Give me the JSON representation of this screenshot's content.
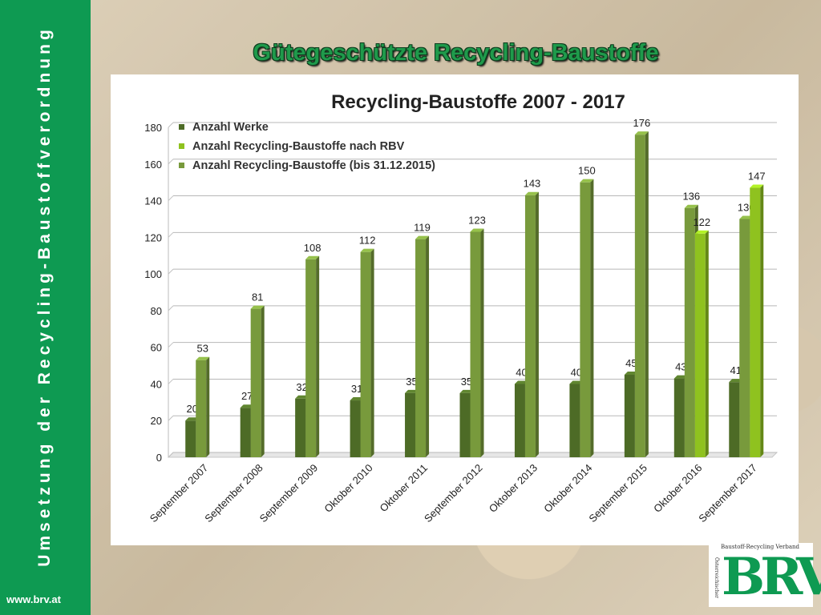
{
  "sidebar": {
    "vertical_text": "Umsetzung der Recycling-Baustoffverordnung",
    "url": "www.brv.at"
  },
  "slide": {
    "title": "Gütegeschützte Recycling-Baustoffe"
  },
  "logo": {
    "top_text": "Baustoff-Recycling Verband",
    "side_text": "Österreichischer",
    "mark": "BRV"
  },
  "colors": {
    "dark": "#4d6b26",
    "light": "#8fc21f",
    "mid": "#789a3c",
    "sidebar": "#0e9a52"
  },
  "chart_data": {
    "type": "bar",
    "title": "Recycling-Baustoffe 2007 - 2017",
    "xlabel": "",
    "ylabel": "",
    "ylim": [
      0,
      180
    ],
    "yticks": [
      0,
      20,
      40,
      60,
      80,
      100,
      120,
      140,
      160,
      180
    ],
    "grid": true,
    "legend": "top-left",
    "categories": [
      "September 2007",
      "September 2008",
      "September 2009",
      "Oktober 2010",
      "Oktober 2011",
      "September 2012",
      "Oktober 2013",
      "Oktober 2014",
      "September 2015",
      "Oktober 2016",
      "September 2017"
    ],
    "series": [
      {
        "name": "Anzahl Werke",
        "color": "#4d6b26",
        "values": [
          20,
          27,
          32,
          31,
          35,
          35,
          40,
          40,
          45,
          43,
          41
        ]
      },
      {
        "name": "Anzahl Recycling-Baustoffe nach RBV",
        "color": "#8fc21f",
        "values": [
          null,
          null,
          null,
          null,
          null,
          null,
          null,
          null,
          null,
          122,
          147
        ]
      },
      {
        "name": "Anzahl Recycling-Baustoffe (bis 31.12.2015)",
        "color": "#789a3c",
        "values": [
          53,
          81,
          108,
          112,
          119,
          123,
          143,
          150,
          176,
          136,
          130
        ]
      }
    ]
  }
}
